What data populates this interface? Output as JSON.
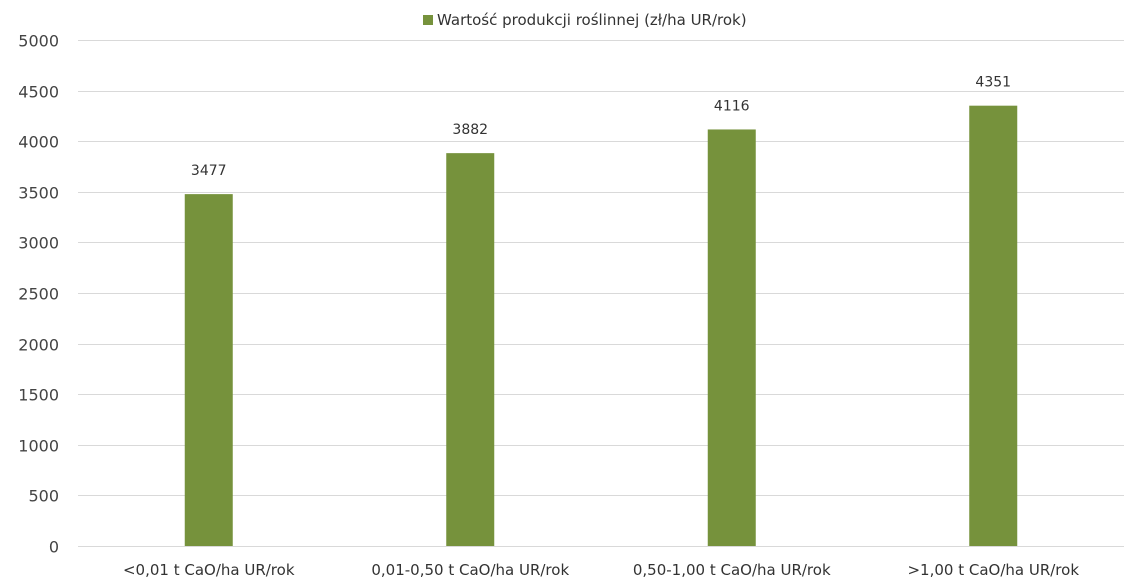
{
  "chart_data": {
    "type": "bar",
    "title": "",
    "xlabel": "",
    "ylabel": "",
    "categories": [
      "<0,01 t CaO/ha UR/rok",
      "0,01-0,50 t CaO/ha UR/rok",
      "0,50-1,00 t CaO/ha UR/rok",
      ">1,00 t CaO/ha UR/rok"
    ],
    "series": [
      {
        "name": "Wartość produkcji roślinnej  (zł/ha UR/rok)",
        "color": "#76923c",
        "values": [
          3477,
          3882,
          4116,
          4351
        ]
      }
    ],
    "ylim": [
      0,
      5000
    ],
    "yticks": [
      0,
      500,
      1000,
      1500,
      2000,
      2500,
      3000,
      3500,
      4000,
      4500,
      5000
    ],
    "grid": true,
    "legend_position": "top-center",
    "data_labels": true
  }
}
